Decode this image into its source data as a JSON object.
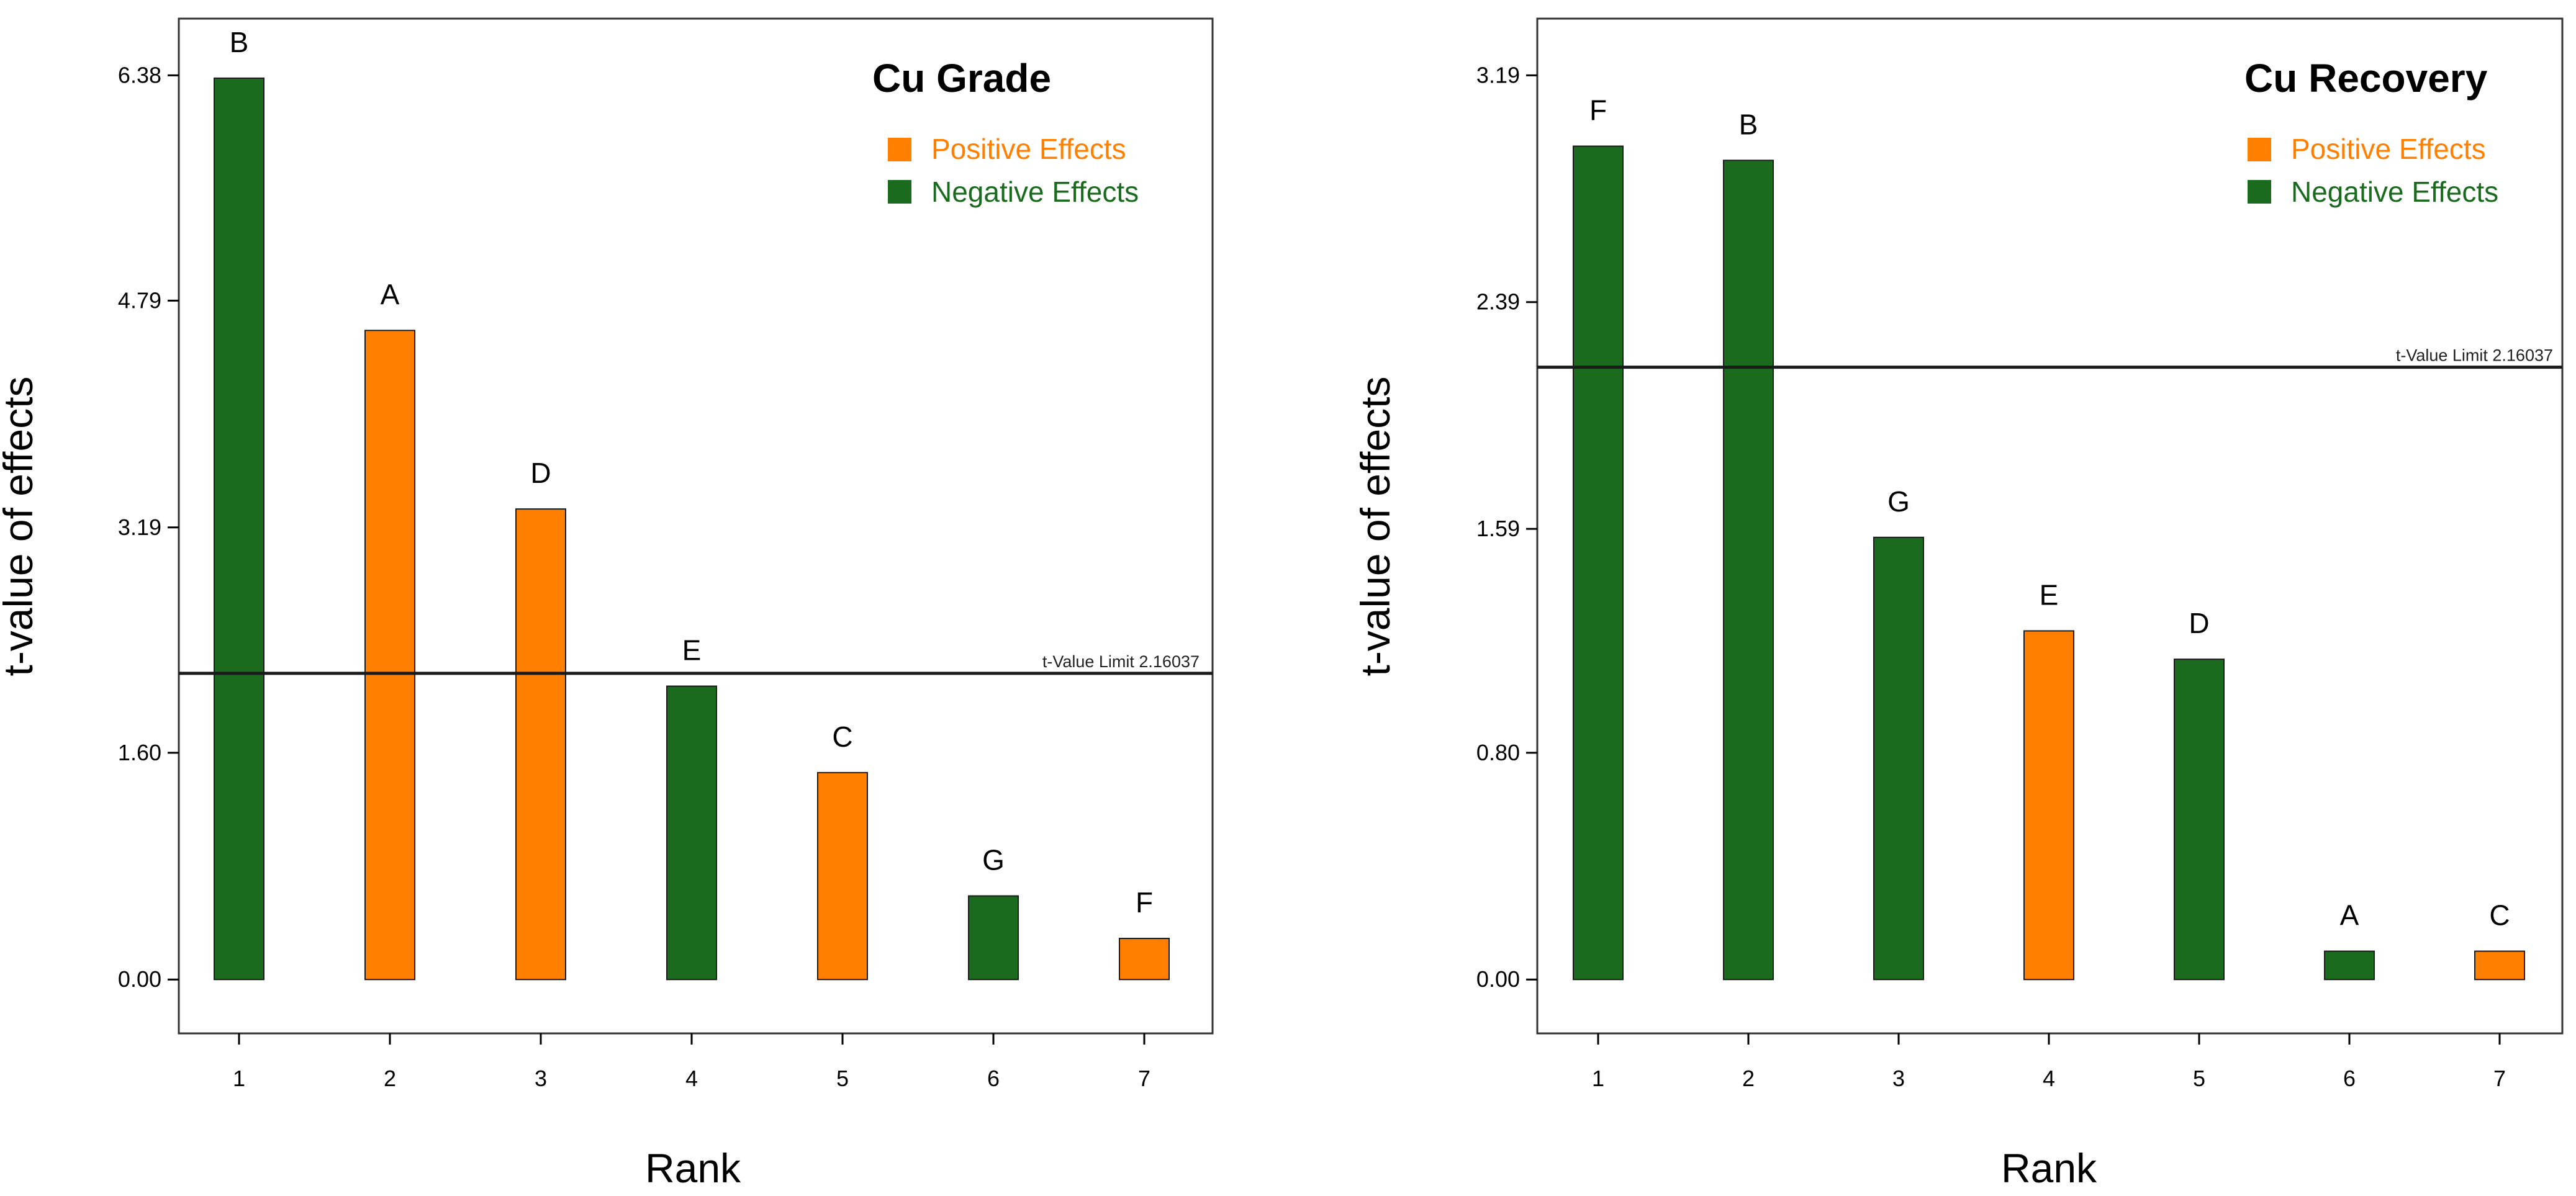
{
  "colors": {
    "positive": "#FF7F00",
    "negative": "#1A6B1E",
    "axis": "#000000",
    "limit_line": "#1a1a1a",
    "frame": "#333333"
  },
  "chart_data": [
    {
      "type": "bar",
      "title": "Cu Grade",
      "xlabel": "Rank",
      "ylabel": "t-value of effects",
      "categories": [
        "1",
        "2",
        "3",
        "4",
        "5",
        "6",
        "7"
      ],
      "bar_labels": [
        "B",
        "A",
        "D",
        "E",
        "C",
        "G",
        "F"
      ],
      "values": [
        6.36,
        4.58,
        3.32,
        2.07,
        1.46,
        0.59,
        0.29
      ],
      "effect": [
        "negative",
        "positive",
        "positive",
        "negative",
        "positive",
        "negative",
        "positive"
      ],
      "yticks": [
        "0.00",
        "1.60",
        "3.19",
        "4.79",
        "6.38"
      ],
      "ylim": [
        -0.38,
        6.78
      ],
      "legend": {
        "position": "top-right",
        "entries": [
          {
            "label": "Positive Effects",
            "effect": "positive"
          },
          {
            "label": "Negative Effects",
            "effect": "negative"
          }
        ]
      },
      "threshold": {
        "value": 2.16037,
        "label": "t-Value Limit 2.16037"
      },
      "grid": false
    },
    {
      "type": "bar",
      "title": "Cu Recovery",
      "xlabel": "Rank",
      "ylabel": "t-value of effects",
      "categories": [
        "1",
        "2",
        "3",
        "4",
        "5",
        "6",
        "7"
      ],
      "bar_labels": [
        "F",
        "B",
        "G",
        "E",
        "D",
        "A",
        "C"
      ],
      "values": [
        2.94,
        2.89,
        1.56,
        1.23,
        1.13,
        0.1,
        0.1
      ],
      "effect": [
        "negative",
        "negative",
        "negative",
        "positive",
        "negative",
        "negative",
        "positive"
      ],
      "yticks": [
        "0.00",
        "0.80",
        "1.59",
        "2.39",
        "3.19"
      ],
      "ylim": [
        -0.19,
        3.39
      ],
      "legend": {
        "position": "top-right",
        "entries": [
          {
            "label": "Positive Effects",
            "effect": "positive"
          },
          {
            "label": "Negative Effects",
            "effect": "negative"
          }
        ]
      },
      "threshold": {
        "value": 2.16037,
        "label": "t-Value Limit 2.16037"
      },
      "grid": false
    }
  ]
}
